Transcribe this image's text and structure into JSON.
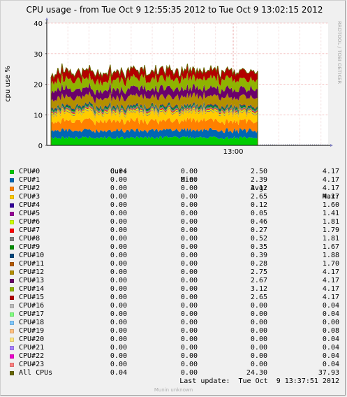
{
  "chart_data": {
    "type": "area",
    "title": "CPU usage - from Tue Oct  9 12:55:35 2012 to Tue Oct  9 13:02:15 2012",
    "ylabel": "cpu use %",
    "ylim": [
      0,
      40
    ],
    "yticks": [
      0,
      10,
      20,
      30,
      40
    ],
    "xticks": [
      {
        "label": "13:00",
        "minutes": 4.42
      }
    ],
    "x_range_minutes": [
      0,
      6.67
    ],
    "data_end_minutes": 5.0,
    "stacked": true,
    "grid": true,
    "watermark": "RRDTOOL / TOBI OETIKER",
    "series": [
      {
        "name": "CPU#0",
        "color": "#00cc00",
        "cur": "0.04",
        "min": "0.00",
        "avg": "2.50",
        "max": "4.17"
      },
      {
        "name": "CPU#1",
        "color": "#0066b3",
        "cur": "0.00",
        "min": "0.00",
        "avg": "2.39",
        "max": "4.17"
      },
      {
        "name": "CPU#2",
        "color": "#ff8000",
        "cur": "0.00",
        "min": "0.00",
        "avg": "3.12",
        "max": "4.17"
      },
      {
        "name": "CPU#3",
        "color": "#ffcc00",
        "cur": "0.00",
        "min": "0.00",
        "avg": "2.65",
        "max": "4.17"
      },
      {
        "name": "CPU#4",
        "color": "#330099",
        "cur": "0.00",
        "min": "0.00",
        "avg": "0.12",
        "max": "1.60"
      },
      {
        "name": "CPU#5",
        "color": "#990099",
        "cur": "0.00",
        "min": "0.00",
        "avg": "0.05",
        "max": "1.41"
      },
      {
        "name": "CPU#6",
        "color": "#ccff00",
        "cur": "0.00",
        "min": "0.00",
        "avg": "0.46",
        "max": "1.81"
      },
      {
        "name": "CPU#7",
        "color": "#ff0000",
        "cur": "0.00",
        "min": "0.00",
        "avg": "0.27",
        "max": "1.79"
      },
      {
        "name": "CPU#8",
        "color": "#808080",
        "cur": "0.00",
        "min": "0.00",
        "avg": "0.52",
        "max": "1.81"
      },
      {
        "name": "CPU#9",
        "color": "#008f00",
        "cur": "0.00",
        "min": "0.00",
        "avg": "0.35",
        "max": "1.67"
      },
      {
        "name": "CPU#10",
        "color": "#00487d",
        "cur": "0.00",
        "min": "0.00",
        "avg": "0.39",
        "max": "1.88"
      },
      {
        "name": "CPU#11",
        "color": "#b35a00",
        "cur": "0.00",
        "min": "0.00",
        "avg": "0.28",
        "max": "1.70"
      },
      {
        "name": "CPU#12",
        "color": "#b38f00",
        "cur": "0.00",
        "min": "0.00",
        "avg": "2.75",
        "max": "4.17"
      },
      {
        "name": "CPU#13",
        "color": "#6b006b",
        "cur": "0.00",
        "min": "0.00",
        "avg": "2.67",
        "max": "4.17"
      },
      {
        "name": "CPU#14",
        "color": "#8fb300",
        "cur": "0.00",
        "min": "0.00",
        "avg": "3.12",
        "max": "4.17"
      },
      {
        "name": "CPU#15",
        "color": "#b30000",
        "cur": "0.00",
        "min": "0.00",
        "avg": "2.65",
        "max": "4.17"
      },
      {
        "name": "CPU#16",
        "color": "#bebebe",
        "cur": "0.00",
        "min": "0.00",
        "avg": "0.00",
        "max": "0.04"
      },
      {
        "name": "CPU#17",
        "color": "#80ff80",
        "cur": "0.00",
        "min": "0.00",
        "avg": "0.00",
        "max": "0.04"
      },
      {
        "name": "CPU#18",
        "color": "#80c9ff",
        "cur": "0.00",
        "min": "0.00",
        "avg": "0.00",
        "max": "0.00"
      },
      {
        "name": "CPU#19",
        "color": "#ffc080",
        "cur": "0.00",
        "min": "0.00",
        "avg": "0.00",
        "max": "0.08"
      },
      {
        "name": "CPU#20",
        "color": "#ffe680",
        "cur": "0.00",
        "min": "0.00",
        "avg": "0.00",
        "max": "0.04"
      },
      {
        "name": "CPU#21",
        "color": "#aa80ff",
        "cur": "0.00",
        "min": "0.00",
        "avg": "0.00",
        "max": "0.04"
      },
      {
        "name": "CPU#22",
        "color": "#ee00cc",
        "cur": "0.00",
        "min": "0.00",
        "avg": "0.00",
        "max": "0.04"
      },
      {
        "name": "CPU#23",
        "color": "#ff8080",
        "cur": "0.00",
        "min": "0.00",
        "avg": "0.00",
        "max": "0.04"
      },
      {
        "name": "All CPUs",
        "color": "#666600",
        "cur": "0.04",
        "min": "0.00",
        "avg": "24.30",
        "max": "37.93"
      }
    ]
  },
  "legend": {
    "headers": {
      "cur": "Cur:",
      "min": "Min:",
      "avg": "Avg:",
      "max": "Max:"
    }
  },
  "last_update": "Last update:  Tue Oct  9 13:37:51 2012",
  "footer": "Munin unknown"
}
